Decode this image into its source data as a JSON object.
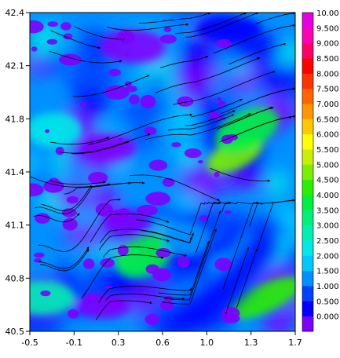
{
  "chart_data": {
    "type": "heatmap",
    "title": "",
    "xlabel": "",
    "ylabel": "",
    "xlim": [
      -0.5,
      1.7
    ],
    "ylim": [
      40.5,
      42.4
    ],
    "x_ticks": [
      "-0.5",
      "-0.1",
      "0.3",
      "0.6",
      "1.0",
      "1.3",
      "1.7"
    ],
    "y_ticks": [
      "40.5",
      "40.8",
      "41.1",
      "41.4",
      "41.8",
      "42.1",
      "42.4"
    ],
    "overlay": "streamlines",
    "colorbar": {
      "levels": [
        "0.000",
        "0.500",
        "1.000",
        "1.500",
        "2.000",
        "2.500",
        "3.000",
        "3.500",
        "4.000",
        "4.500",
        "5.000",
        "5.500",
        "6.000",
        "6.500",
        "7.000",
        "7.500",
        "8.000",
        "8.500",
        "9.000",
        "9.500",
        "10.00"
      ],
      "colors": [
        "#7d00ff",
        "#0000ff",
        "#0040ff",
        "#0090ff",
        "#00c8ff",
        "#00e8e8",
        "#00f0b4",
        "#00f07a",
        "#00f040",
        "#28f000",
        "#78f000",
        "#c8f000",
        "#ffff00",
        "#ffc800",
        "#ff9600",
        "#ff6400",
        "#ff3200",
        "#ff0000",
        "#ff0064",
        "#ff00b4",
        "#e600e6"
      ]
    },
    "features": [
      {
        "x": 1.2,
        "y": 41.55,
        "value": 5.0
      },
      {
        "x": 1.3,
        "y": 41.7,
        "value": 4.0
      },
      {
        "x": 1.45,
        "y": 40.7,
        "value": 4.5
      },
      {
        "x": 0.45,
        "y": 40.95,
        "value": 4.0
      },
      {
        "x": 0.15,
        "y": 41.6,
        "value": 0.0
      },
      {
        "x": 0.35,
        "y": 42.2,
        "value": 0.0
      },
      {
        "x": 0.3,
        "y": 41.15,
        "value": 0.0
      },
      {
        "x": -0.3,
        "y": 41.7,
        "value": 2.5
      },
      {
        "x": 1.15,
        "y": 42.3,
        "value": 0.5
      },
      {
        "x": 0.8,
        "y": 41.05,
        "value": 1.5
      },
      {
        "x": 0.1,
        "y": 40.65,
        "value": 0.0
      },
      {
        "x": -0.4,
        "y": 40.7,
        "value": 3.0
      }
    ]
  }
}
